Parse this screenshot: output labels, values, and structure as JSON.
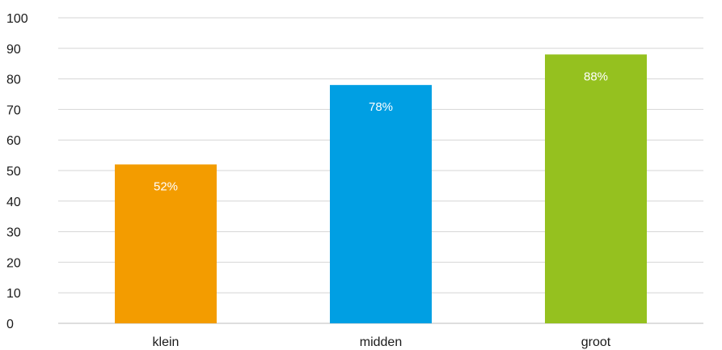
{
  "chart_data": {
    "type": "bar",
    "categories": [
      "klein",
      "midden",
      "groot"
    ],
    "values": [
      52,
      78,
      88
    ],
    "data_labels": [
      "52%",
      "78%",
      "88%"
    ],
    "colors": [
      "#f39c00",
      "#009fe3",
      "#95c11f"
    ],
    "title": "",
    "xlabel": "",
    "ylabel": "",
    "ylim": [
      0,
      100
    ],
    "yticks": [
      0,
      10,
      20,
      30,
      40,
      50,
      60,
      70,
      80,
      90,
      100
    ],
    "grid": true,
    "legend": "none"
  }
}
